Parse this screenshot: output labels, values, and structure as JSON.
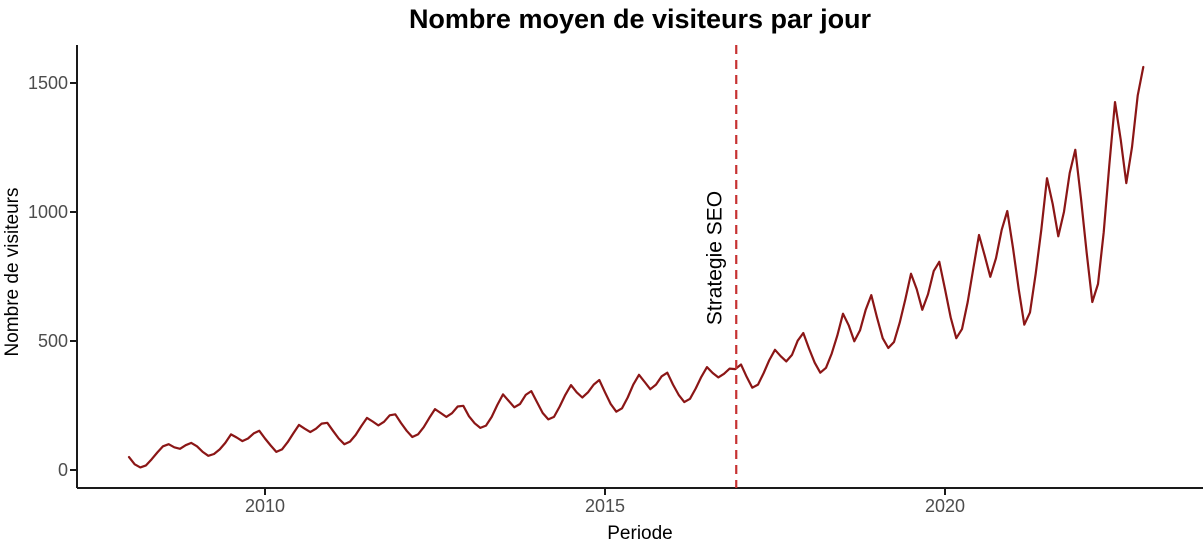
{
  "title": "Nombre moyen de visiteurs par jour",
  "colors": {
    "series_line": "#8B1616",
    "annotation_line": "#C73232",
    "annotation_text": "#000000",
    "axis_text": "#4D4D4D",
    "axis_line": "#1A1A1A",
    "title_text": "#000000",
    "background": "#FFFFFF"
  },
  "chart_data": {
    "type": "line",
    "title": "Nombre moyen de visiteurs par jour",
    "xlabel": "Periode",
    "ylabel": "Nombre de visiteurs",
    "grid": false,
    "legend": false,
    "x_ticks": [
      2010,
      2015,
      2020
    ],
    "y_ticks": [
      0,
      500,
      1000,
      1500
    ],
    "xlim_years": [
      2007.2,
      2023.8
    ],
    "ylim": [
      0,
      1650
    ],
    "annotation": {
      "label": "Strategie SEO",
      "x_year": 2016.93,
      "line_style": "dashed",
      "full_height": true
    },
    "series": [
      {
        "name": "visiteurs_moyens_par_jour",
        "start_year": 2008,
        "frequency": "monthly",
        "values": [
          50,
          22,
          10,
          18,
          42,
          68,
          92,
          100,
          88,
          82,
          96,
          105,
          92,
          70,
          55,
          62,
          80,
          105,
          138,
          126,
          112,
          122,
          142,
          152,
          122,
          95,
          70,
          80,
          108,
          142,
          175,
          160,
          147,
          160,
          180,
          183,
          152,
          122,
          100,
          110,
          136,
          170,
          202,
          188,
          173,
          187,
          212,
          216,
          182,
          152,
          128,
          138,
          166,
          202,
          236,
          221,
          206,
          220,
          246,
          249,
          208,
          181,
          163,
          172,
          206,
          252,
          293,
          268,
          243,
          256,
          291,
          306,
          263,
          221,
          196,
          206,
          246,
          291,
          329,
          301,
          281,
          301,
          331,
          349,
          301,
          256,
          226,
          239,
          281,
          331,
          369,
          341,
          313,
          331,
          363,
          377,
          331,
          291,
          263,
          276,
          316,
          361,
          399,
          376,
          359,
          373,
          393,
          391,
          409,
          361,
          319,
          331,
          376,
          426,
          466,
          441,
          421,
          446,
          501,
          531,
          471,
          416,
          377,
          396,
          451,
          521,
          606,
          561,
          499,
          541,
          621,
          678,
          591,
          511,
          473,
          496,
          571,
          661,
          761,
          701,
          621,
          681,
          771,
          807,
          701,
          591,
          511,
          546,
          651,
          781,
          911,
          831,
          749,
          821,
          931,
          1004,
          861,
          701,
          563,
          611,
          761,
          931,
          1131,
          1031,
          906,
          1001,
          1151,
          1241,
          1051,
          841,
          651,
          721,
          921,
          1181,
          1426,
          1281,
          1112,
          1251,
          1451,
          1562
        ]
      }
    ]
  }
}
